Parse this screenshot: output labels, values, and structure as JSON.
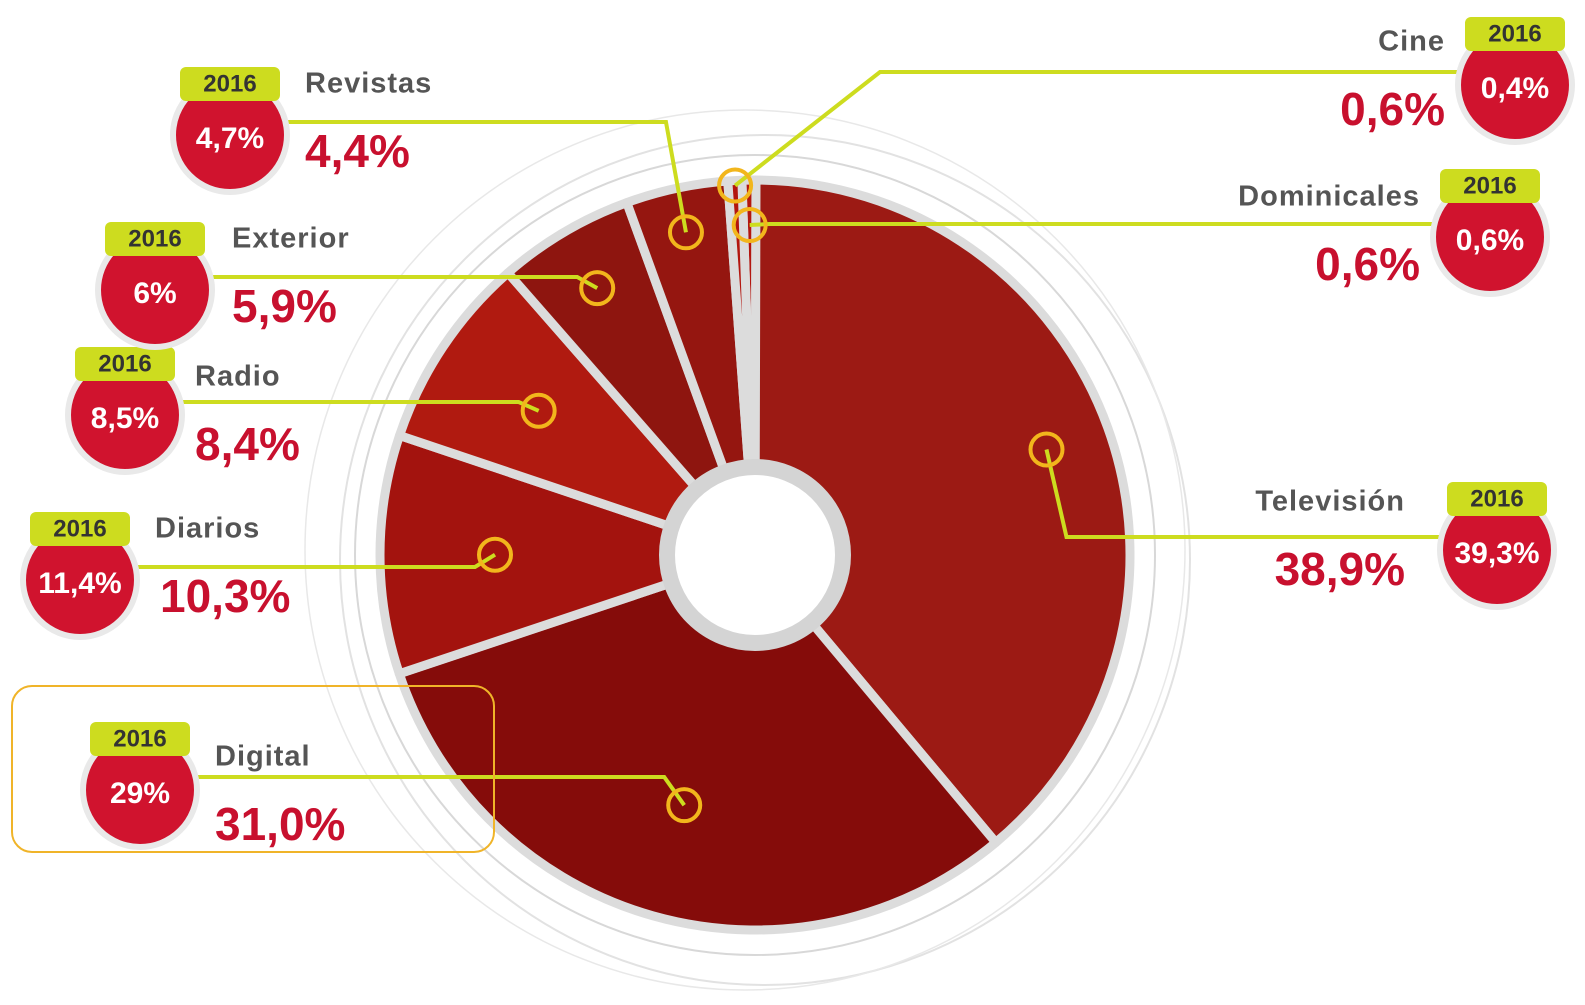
{
  "chart_data": {
    "type": "pie",
    "categories": [
      "Dominicales",
      "Televisión",
      "Digital",
      "Diarios",
      "Radio",
      "Exterior",
      "Revistas",
      "Cine"
    ],
    "series": [
      {
        "values": [
          0.6,
          38.9,
          31.0,
          10.3,
          8.4,
          5.9,
          4.4,
          0.6
        ],
        "value_labels": [
          "0,6%",
          "38,9%",
          "31,0%",
          "10,3%",
          "8,4%",
          "5,9%",
          "4,4%",
          "0,6%"
        ],
        "colors": [
          "#b3160f",
          "#9c1a14",
          "#850c0a",
          "#a3130e",
          "#b01a10",
          "#8e150f",
          "#951610",
          "#b3160f"
        ]
      },
      {
        "name": "2016",
        "values": [
          0.6,
          39.3,
          29,
          11.4,
          8.5,
          6,
          4.7,
          0.4
        ],
        "value_labels": [
          "0,6%",
          "39,3%",
          "29%",
          "11,4%",
          "8,5%",
          "6%",
          "4,7%",
          "0,4%"
        ]
      }
    ]
  }
}
